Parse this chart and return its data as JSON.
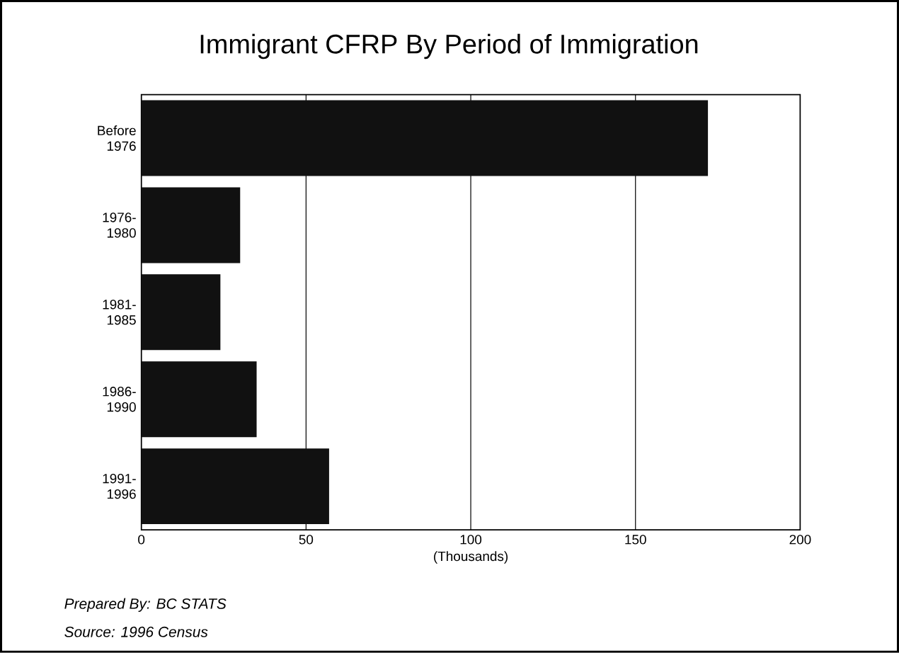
{
  "chart_data": {
    "type": "bar",
    "orientation": "horizontal",
    "title": "Immigrant CFRP By Period of Immigration",
    "xlabel": "(Thousands)",
    "categories": [
      "Before 1976",
      "1976-1980",
      "1981-1985",
      "1986-1990",
      "1991-1996"
    ],
    "values": [
      172,
      30,
      24,
      35,
      57
    ],
    "color": "#111111",
    "xlim": [
      0,
      200
    ],
    "xticks": [
      0,
      50,
      100,
      150,
      200
    ],
    "grid": "x",
    "annotations": [
      "Prepared By: BC STATS",
      "Source: 1996 Census"
    ]
  }
}
